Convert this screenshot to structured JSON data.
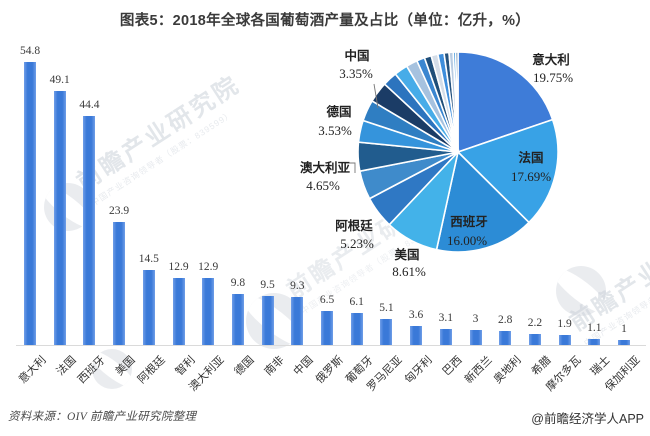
{
  "title": "图表5：2018年全球各国葡萄酒产量及占比（单位：亿升，%）",
  "footer": {
    "source": "资料来源：OIV  前瞻产业研究院整理",
    "credit": "@前瞻经济学人APP"
  },
  "watermark": {
    "main": "前瞻产业研究院",
    "sub": "中国产业咨询领导者（股票：839599）"
  },
  "colors": {
    "bar": "#3A79D8",
    "axis": "#DADADA",
    "bar_value_text": "#3A3A3A",
    "pie_label_text": "#222222"
  },
  "chart_data": [
    {
      "type": "bar",
      "title": "2018年全球各国葡萄酒产量",
      "unit": "亿升",
      "categories": [
        "意大利",
        "法国",
        "西班牙",
        "美国",
        "阿根廷",
        "智利",
        "澳大利亚",
        "德国",
        "南非",
        "中国",
        "俄罗斯",
        "葡萄牙",
        "罗马尼亚",
        "匈牙利",
        "巴西",
        "新西兰",
        "奥地利",
        "希腊",
        "摩尔多瓦",
        "瑞士",
        "保加利亚"
      ],
      "values": [
        54.8,
        49.1,
        44.4,
        23.9,
        14.5,
        12.9,
        12.9,
        9.8,
        9.5,
        9.3,
        6.5,
        6.1,
        5.1,
        3.6,
        3.1,
        3,
        2.8,
        2.2,
        1.9,
        1.1,
        1
      ],
      "value_labels": [
        "54.8",
        "49.1",
        "44.4",
        "23.9",
        "14.5",
        "12.9",
        "12.9",
        "9.8",
        "9.5",
        "9.3",
        "6.5",
        "6.1",
        "5.1",
        "3.6",
        "3.1",
        "3",
        "2.8",
        "2.2",
        "1.9",
        "1.1",
        "1"
      ],
      "ylim": [
        0,
        60
      ],
      "grid": false
    },
    {
      "type": "pie",
      "unit": "%",
      "labels": [
        "意大利",
        "法国",
        "西班牙",
        "美国",
        "阿根廷",
        "智利",
        "澳大利亚",
        "德国",
        "南非",
        "中国",
        "俄罗斯",
        "葡萄牙",
        "罗马尼亚",
        "匈牙利",
        "巴西",
        "新西兰",
        "奥地利",
        "希腊",
        "摩尔多瓦",
        "瑞士",
        "保加利亚"
      ],
      "values": [
        54.8,
        49.1,
        44.4,
        23.9,
        14.5,
        12.9,
        12.9,
        9.8,
        9.5,
        9.3,
        6.5,
        6.1,
        5.1,
        3.6,
        3.1,
        3,
        2.8,
        2.2,
        1.9,
        1.1,
        1
      ],
      "colors": [
        "#3E7CD8",
        "#38A2E6",
        "#2C8CD6",
        "#43B2E9",
        "#2F78C4",
        "#3F8BCB",
        "#215C8E",
        "#3594DC",
        "#2F7EC2",
        "#1B3C66",
        "#2C74BE",
        "#47ACE8",
        "#A6C2DF",
        "#3A86D0",
        "#1F4E79",
        "#D4DDE8",
        "#3E8EDC",
        "#24527E",
        "#B9CCE2",
        "#4D9FE0",
        "#2A5F92"
      ],
      "legend_position": "none",
      "displayed_labels": [
        {
          "key": "italy",
          "name": "意大利",
          "pct": "19.75%"
        },
        {
          "key": "france",
          "name": "法国",
          "pct": "17.69%"
        },
        {
          "key": "spain",
          "name": "西班牙",
          "pct": "16.00%"
        },
        {
          "key": "usa",
          "name": "美国",
          "pct": "8.61%"
        },
        {
          "key": "argentina",
          "name": "阿根廷",
          "pct": "5.23%"
        },
        {
          "key": "australia",
          "name": "澳大利亚",
          "pct": "4.65%"
        },
        {
          "key": "germany",
          "name": "德国",
          "pct": "3.53%"
        },
        {
          "key": "china",
          "name": "中国",
          "pct": "3.35%"
        }
      ]
    }
  ]
}
